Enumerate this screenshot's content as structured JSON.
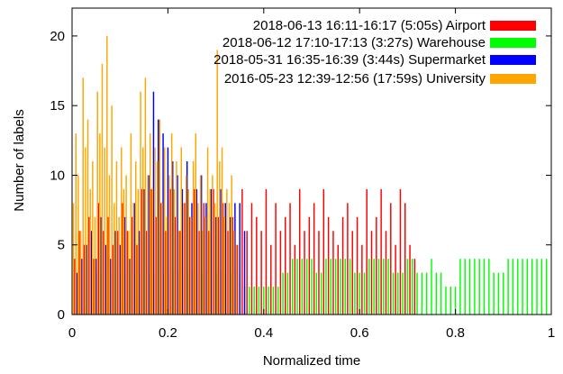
{
  "chart_data": {
    "type": "bar",
    "subtype": "overlaid-histogram",
    "title": "",
    "xlabel": "Normalized time",
    "ylabel": "Number of labels",
    "xlim": [
      0,
      1
    ],
    "ylim": [
      0,
      22
    ],
    "xticks": [
      0,
      0.2,
      0.4,
      0.6,
      0.8,
      1
    ],
    "xtick_labels": [
      "0",
      "0.2",
      "0.4",
      "0.6",
      "0.8",
      "1"
    ],
    "yticks": [
      0,
      5,
      10,
      15,
      20
    ],
    "ytick_labels": [
      "0",
      "5",
      "10",
      "15",
      "20"
    ],
    "grid": false,
    "legend_position": "top-right",
    "bin_width": 0.005,
    "series": [
      {
        "name": "2018-06-13 16:11-16:17 (5:05s) Airport",
        "color": "#ff0000",
        "x": [
          0.005,
          0.015,
          0.025,
          0.035,
          0.045,
          0.055,
          0.065,
          0.075,
          0.085,
          0.095,
          0.105,
          0.115,
          0.125,
          0.135,
          0.145,
          0.155,
          0.165,
          0.175,
          0.185,
          0.195,
          0.205,
          0.215,
          0.225,
          0.235,
          0.245,
          0.255,
          0.265,
          0.275,
          0.285,
          0.295,
          0.305,
          0.315,
          0.325,
          0.335,
          0.345,
          0.355,
          0.365,
          0.375,
          0.385,
          0.395,
          0.405,
          0.415,
          0.425,
          0.435,
          0.445,
          0.455,
          0.465,
          0.475,
          0.485,
          0.495,
          0.505,
          0.515,
          0.525,
          0.535,
          0.545,
          0.555,
          0.565,
          0.575,
          0.585,
          0.595,
          0.605,
          0.615,
          0.625,
          0.635,
          0.645,
          0.655,
          0.665,
          0.675,
          0.685,
          0.695,
          0.705,
          0.715
        ],
        "y": [
          4,
          6,
          5,
          7,
          4,
          8,
          6,
          7,
          5,
          6,
          8,
          6,
          7,
          5,
          9,
          6,
          9,
          7,
          8,
          6,
          9,
          7,
          6,
          8,
          7,
          9,
          6,
          8,
          6,
          9,
          7,
          8,
          6,
          7,
          5,
          9,
          6,
          8,
          7,
          6,
          9,
          5,
          8,
          6,
          7,
          8,
          5,
          9,
          6,
          7,
          8,
          6,
          9,
          7,
          6,
          5,
          7,
          8,
          6,
          7,
          5,
          9,
          6,
          7,
          9,
          6,
          8,
          5,
          9,
          8,
          5,
          4
        ]
      },
      {
        "name": "2018-06-12 17:10-17:13 (3:27s) Warehouse",
        "color": "#00ff00",
        "x": [
          0.05,
          0.06,
          0.07,
          0.08,
          0.09,
          0.1,
          0.11,
          0.12,
          0.13,
          0.14,
          0.15,
          0.16,
          0.17,
          0.18,
          0.19,
          0.2,
          0.21,
          0.22,
          0.23,
          0.24,
          0.25,
          0.26,
          0.27,
          0.28,
          0.29,
          0.3,
          0.31,
          0.32,
          0.33,
          0.34,
          0.35,
          0.36,
          0.37,
          0.38,
          0.39,
          0.4,
          0.41,
          0.42,
          0.43,
          0.44,
          0.45,
          0.46,
          0.47,
          0.48,
          0.49,
          0.5,
          0.51,
          0.52,
          0.53,
          0.54,
          0.55,
          0.56,
          0.57,
          0.58,
          0.59,
          0.6,
          0.61,
          0.62,
          0.63,
          0.64,
          0.65,
          0.66,
          0.67,
          0.68,
          0.69,
          0.7,
          0.71,
          0.72,
          0.73,
          0.74,
          0.75,
          0.76,
          0.77,
          0.78,
          0.79,
          0.8,
          0.81,
          0.82,
          0.83,
          0.84,
          0.85,
          0.86,
          0.87,
          0.88,
          0.89,
          0.9,
          0.91,
          0.92,
          0.93,
          0.94,
          0.95,
          0.96,
          0.97,
          0.98,
          0.99
        ],
        "y": [
          3,
          3,
          3,
          3,
          3,
          3,
          3,
          3,
          3,
          3,
          3,
          3,
          3,
          3,
          3,
          3,
          3,
          3,
          3,
          3,
          3,
          3,
          3,
          3,
          3,
          3,
          3,
          3,
          3,
          3,
          3,
          2,
          2,
          2,
          2,
          2,
          2,
          2,
          2,
          3,
          3,
          4,
          4,
          4,
          4,
          4,
          3,
          3,
          4,
          4,
          4,
          4,
          4,
          4,
          3,
          3,
          3,
          4,
          4,
          4,
          4,
          4,
          3,
          3,
          3,
          4,
          4,
          3,
          3,
          3,
          4,
          3,
          3,
          2,
          2,
          2,
          4,
          4,
          4,
          4,
          4,
          4,
          4,
          3,
          3,
          3,
          4,
          4,
          4,
          4,
          4,
          4,
          4,
          4,
          4
        ]
      },
      {
        "name": "2018-05-31 16:35-16:39 (3:44s) Supermarket",
        "color": "#0000ff",
        "x": [
          0.01,
          0.02,
          0.03,
          0.04,
          0.05,
          0.06,
          0.07,
          0.08,
          0.09,
          0.1,
          0.11,
          0.12,
          0.13,
          0.14,
          0.15,
          0.16,
          0.17,
          0.18,
          0.19,
          0.2,
          0.21,
          0.22,
          0.23,
          0.24,
          0.25,
          0.26,
          0.27,
          0.28,
          0.29,
          0.3,
          0.31,
          0.32,
          0.33,
          0.34,
          0.35,
          0.36
        ],
        "y": [
          3,
          4,
          5,
          6,
          4,
          7,
          5,
          4,
          6,
          5,
          7,
          4,
          8,
          6,
          9,
          10,
          16,
          14,
          13,
          12,
          11,
          10,
          9,
          11,
          8,
          9,
          10,
          8,
          9,
          7,
          9,
          8,
          7,
          8,
          8,
          6
        ]
      },
      {
        "name": "2016-05-23 12:39-12:56 (17:59s) University",
        "color": "#ffa500",
        "x": [
          0.003,
          0.008,
          0.013,
          0.018,
          0.023,
          0.028,
          0.033,
          0.038,
          0.043,
          0.048,
          0.053,
          0.058,
          0.063,
          0.068,
          0.073,
          0.078,
          0.083,
          0.088,
          0.093,
          0.098,
          0.103,
          0.108,
          0.113,
          0.118,
          0.123,
          0.128,
          0.133,
          0.138,
          0.143,
          0.148,
          0.153,
          0.158,
          0.163,
          0.168,
          0.173,
          0.178,
          0.183,
          0.188,
          0.193,
          0.198,
          0.203,
          0.208,
          0.213,
          0.218,
          0.223,
          0.228,
          0.233,
          0.238,
          0.243,
          0.248,
          0.253,
          0.258,
          0.263,
          0.268,
          0.273,
          0.278,
          0.283,
          0.288,
          0.293,
          0.298,
          0.303,
          0.308,
          0.313,
          0.318,
          0.323,
          0.328,
          0.333,
          0.338,
          0.343
        ],
        "y": [
          8,
          13,
          10,
          6,
          17,
          12,
          14,
          9,
          11,
          7,
          16,
          13,
          18,
          12,
          20,
          10,
          15,
          8,
          11,
          7,
          12,
          9,
          10,
          6,
          13,
          8,
          11,
          9,
          16,
          12,
          17,
          10,
          13,
          9,
          12,
          11,
          14,
          8,
          12,
          7,
          10,
          13,
          9,
          11,
          6,
          12,
          8,
          10,
          9,
          7,
          11,
          13,
          8,
          10,
          6,
          7,
          12,
          9,
          10,
          8,
          19,
          11,
          12,
          7,
          9,
          8,
          10,
          6,
          5
        ]
      }
    ]
  }
}
